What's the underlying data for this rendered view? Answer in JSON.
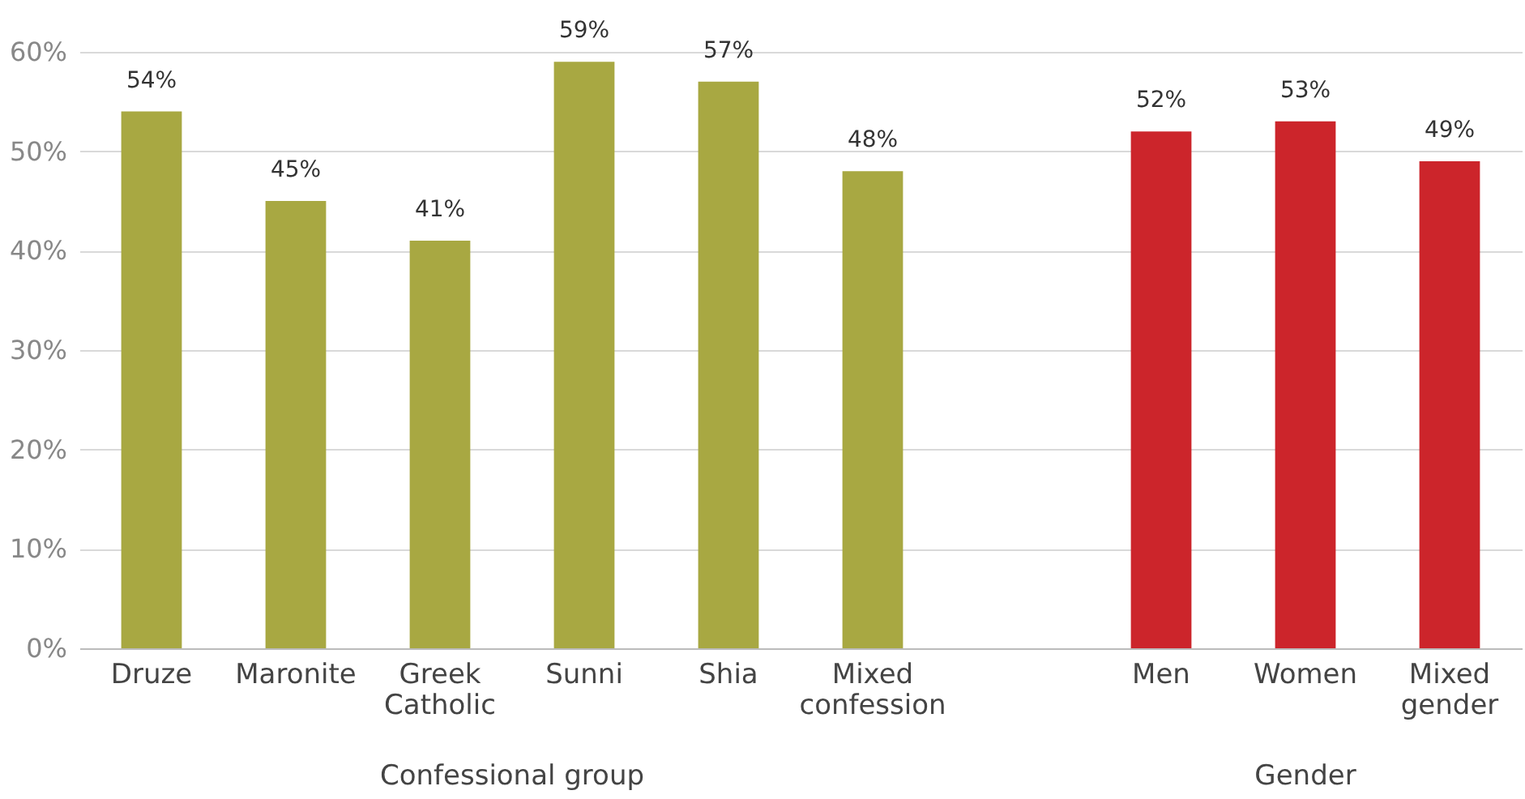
{
  "chart_data": {
    "type": "bar",
    "categories": [
      "Druze",
      "Maronite",
      "Greek Catholic",
      "Sunni",
      "Shia",
      "Mixed confession",
      null,
      "Men",
      "Women",
      "Mixed gender"
    ],
    "values": [
      54,
      45,
      41,
      59,
      57,
      48,
      null,
      52,
      53,
      49
    ],
    "value_labels": [
      "54%",
      "45%",
      "41%",
      "59%",
      "57%",
      "48%",
      null,
      "52%",
      "53%",
      "49%"
    ],
    "colors": [
      "#a8a842",
      "#a8a842",
      "#a8a842",
      "#a8a842",
      "#a8a842",
      "#a8a842",
      null,
      "#cc252b",
      "#cc252b",
      "#cc252b"
    ],
    "ylim": [
      0,
      60
    ],
    "yticks": [
      {
        "value": 0,
        "label": "0%"
      },
      {
        "value": 10,
        "label": "10%"
      },
      {
        "value": 20,
        "label": "20%"
      },
      {
        "value": 30,
        "label": "30%"
      },
      {
        "value": 40,
        "label": "40%"
      },
      {
        "value": 50,
        "label": "50%"
      },
      {
        "value": 60,
        "label": "60%"
      }
    ],
    "grid": "y",
    "annotations": [
      "Confessional group",
      "Gender"
    ]
  }
}
